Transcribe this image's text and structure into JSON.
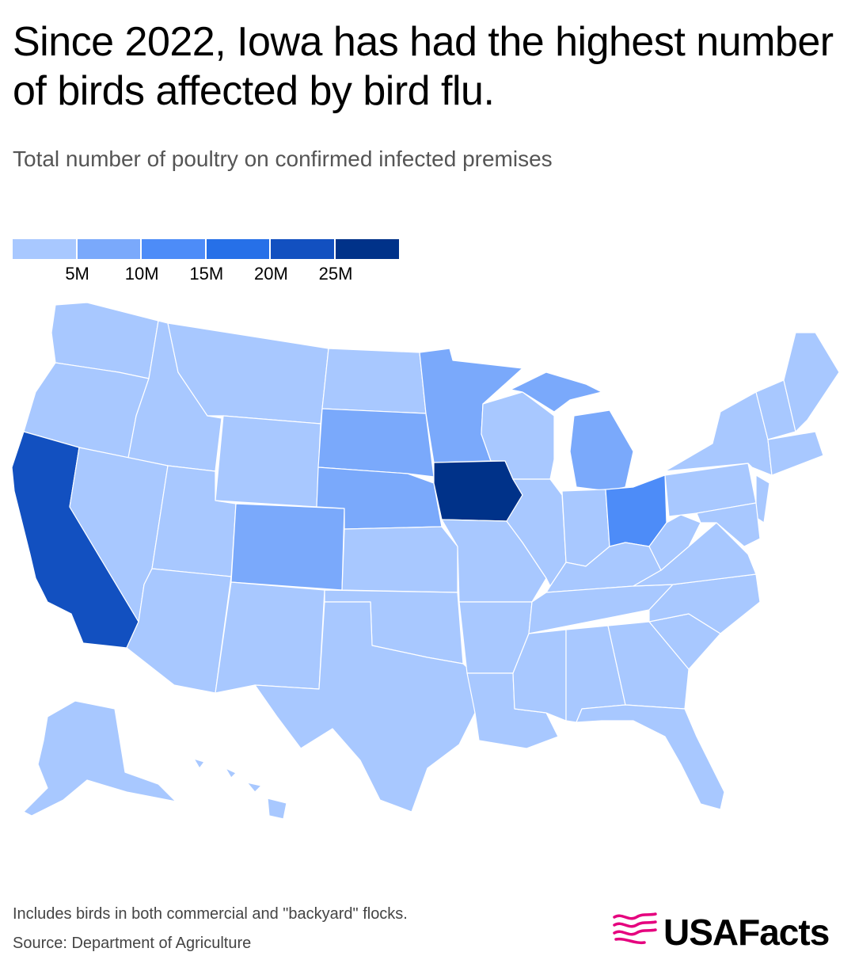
{
  "title": "Since 2022, Iowa has had the highest number of birds affected by bird flu.",
  "subtitle": "Total number of poultry on confirmed infected premises",
  "legend": {
    "bins": [
      "#a8c8ff",
      "#7aa9fb",
      "#4d8cf8",
      "#2670e8",
      "#1250c0",
      "#003289"
    ],
    "ticks": [
      "5M",
      "10M",
      "15M",
      "20M",
      "25M"
    ]
  },
  "map_data": {
    "type": "choropleth",
    "unit": "birds",
    "levels": {
      "Iowa": 5,
      "California": 4,
      "Ohio": 2,
      "Minnesota": 1,
      "South Dakota": 1,
      "Nebraska": 1,
      "Colorado": 1,
      "Michigan": 1,
      "other_states": 0
    }
  },
  "footer": {
    "note": "Includes birds in both commercial and \"backyard\" flocks.",
    "source": "Source: Department of Agriculture"
  },
  "brand": {
    "name": "USAFacts",
    "accent": "#e5007e"
  }
}
